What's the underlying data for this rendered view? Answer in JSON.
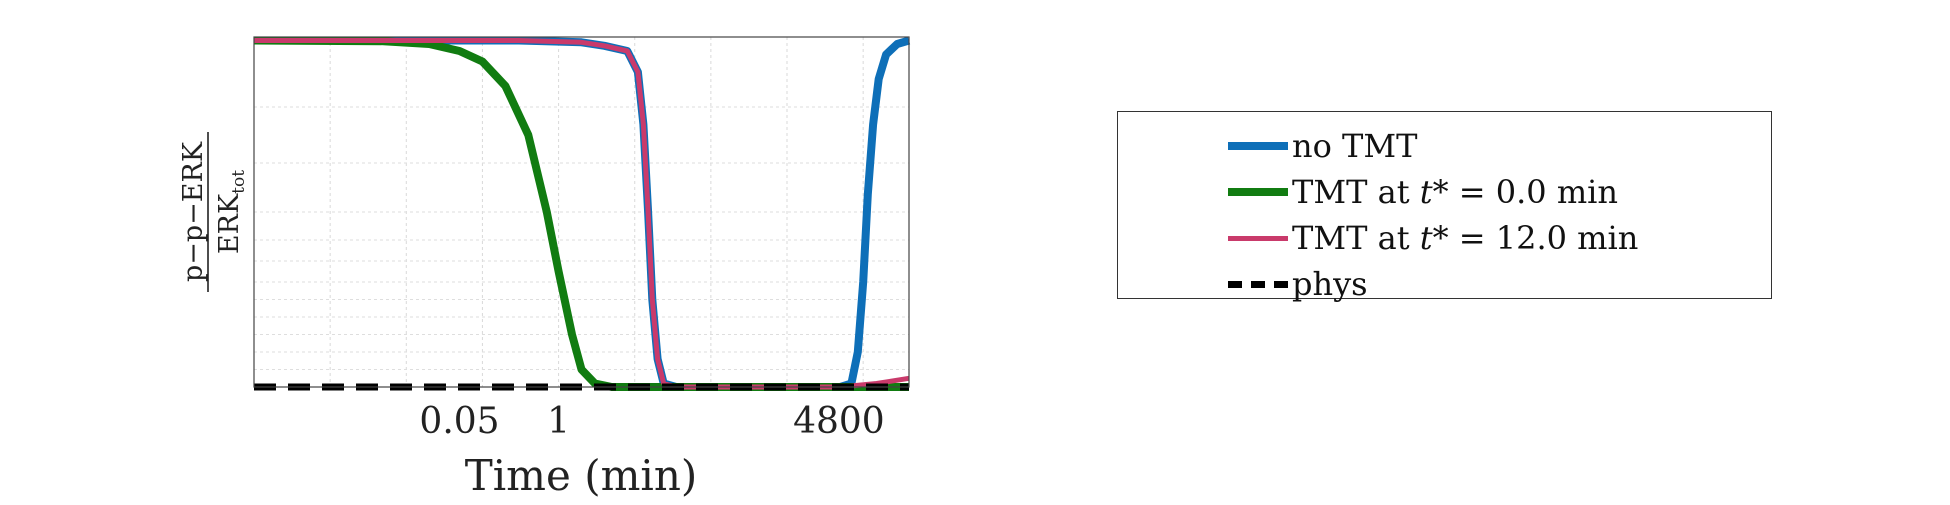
{
  "chart_data": {
    "type": "line",
    "xlabel": "Time (min)",
    "ylabel": {
      "numerator": "p−p−ERK",
      "denominator_main": "ERK",
      "denominator_sub": "tot"
    },
    "x_scale": "log",
    "xlim": [
      0.0001,
      40000
    ],
    "ylim": [
      0,
      1
    ],
    "x_ticks": [
      0.05,
      1,
      4800
    ],
    "x_tick_labels": [
      "0.05",
      "1",
      "4800"
    ],
    "grid": true,
    "legend_position": "right",
    "series": [
      {
        "name": "no TMT",
        "color": "#0e6fb8",
        "style": "solid-thick",
        "points": [
          [
            0.0001,
            0.99
          ],
          [
            0.3,
            0.99
          ],
          [
            2,
            0.985
          ],
          [
            4,
            0.975
          ],
          [
            8,
            0.96
          ],
          [
            11,
            0.9
          ],
          [
            13,
            0.75
          ],
          [
            15,
            0.5
          ],
          [
            17,
            0.25
          ],
          [
            20,
            0.08
          ],
          [
            24,
            0.01
          ],
          [
            35,
            0.0
          ],
          [
            1000,
            0.0
          ],
          [
            5000,
            0.0
          ],
          [
            7000,
            0.01
          ],
          [
            8500,
            0.1
          ],
          [
            10000,
            0.3
          ],
          [
            11500,
            0.55
          ],
          [
            13500,
            0.75
          ],
          [
            16000,
            0.88
          ],
          [
            20000,
            0.95
          ],
          [
            28000,
            0.98
          ],
          [
            40000,
            0.99
          ]
        ]
      },
      {
        "name": "TMT at t* = 0.0 min",
        "color": "#117c11",
        "style": "solid-thick",
        "points": [
          [
            0.0001,
            0.99
          ],
          [
            0.005,
            0.988
          ],
          [
            0.02,
            0.98
          ],
          [
            0.05,
            0.96
          ],
          [
            0.1,
            0.93
          ],
          [
            0.2,
            0.86
          ],
          [
            0.4,
            0.72
          ],
          [
            0.7,
            0.5
          ],
          [
            1,
            0.33
          ],
          [
            1.5,
            0.15
          ],
          [
            2,
            0.05
          ],
          [
            3,
            0.01
          ],
          [
            5,
            0.0
          ],
          [
            40000,
            0.0
          ]
        ]
      },
      {
        "name": "TMT at t* = 12.0 min",
        "color": "#c93a6b",
        "style": "solid",
        "points": [
          [
            0.0001,
            0.99
          ],
          [
            0.3,
            0.99
          ],
          [
            2,
            0.985
          ],
          [
            4,
            0.975
          ],
          [
            8,
            0.96
          ],
          [
            11,
            0.9
          ],
          [
            13,
            0.75
          ],
          [
            15,
            0.5
          ],
          [
            17,
            0.25
          ],
          [
            20,
            0.08
          ],
          [
            24,
            0.01
          ],
          [
            35,
            0.0
          ],
          [
            1000,
            0.0
          ],
          [
            5000,
            0.0
          ],
          [
            15000,
            0.01
          ],
          [
            40000,
            0.025
          ]
        ]
      },
      {
        "name": "phys",
        "color": "#000000",
        "style": "dashed",
        "points": [
          [
            0.0001,
            0.0
          ],
          [
            40000,
            0.0
          ]
        ]
      }
    ],
    "legend": [
      {
        "pre": "no TMT",
        "italic": "",
        "post": ""
      },
      {
        "pre": "TMT at ",
        "italic": "t",
        "post": "* = 0.0 min"
      },
      {
        "pre": "TMT at ",
        "italic": "t",
        "post": "* = 12.0 min"
      },
      {
        "pre": "phys",
        "italic": "",
        "post": ""
      }
    ]
  }
}
